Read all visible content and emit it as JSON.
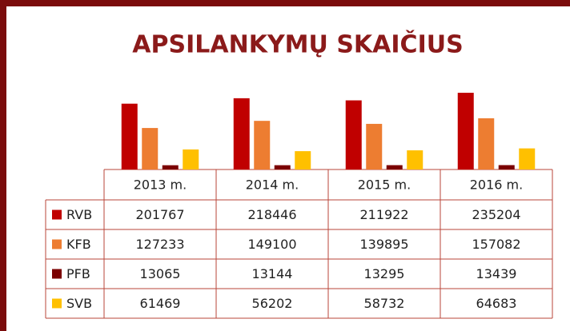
{
  "chart_data": {
    "type": "bar",
    "title": "APSILANKYMŲ SKAIČIUS",
    "categories": [
      "2013 m.",
      "2014 m.",
      "2015 m.",
      "2016 m."
    ],
    "series": [
      {
        "name": "RVB",
        "color": "#c00000",
        "values": [
          201767,
          218446,
          211922,
          235204
        ]
      },
      {
        "name": "KFB",
        "color": "#ed7d31",
        "values": [
          127233,
          149100,
          139895,
          157082
        ]
      },
      {
        "name": "PFB",
        "color": "#7b0000",
        "values": [
          13065,
          13144,
          13295,
          13439
        ]
      },
      {
        "name": "SVB",
        "color": "#ffc000",
        "values": [
          61469,
          56202,
          58732,
          64683
        ]
      }
    ],
    "ylim": [
      0,
      250000
    ]
  }
}
